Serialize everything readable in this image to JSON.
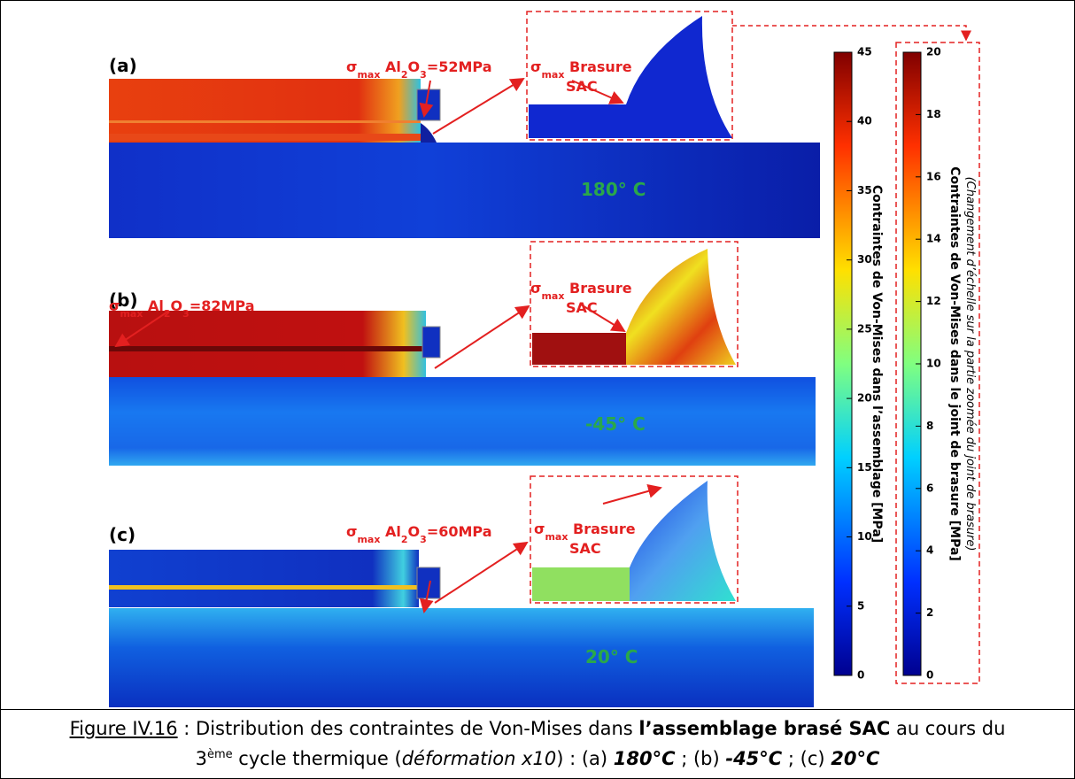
{
  "panels": [
    {
      "label": "(a)",
      "stress": {
        "symbol": "σ",
        "sub": "max",
        "material": " Al",
        "sub1": "2",
        "material2": "O",
        "sub2": "3",
        "value": "=52MPa"
      },
      "zoom": {
        "symbol": "σ",
        "sub": "max",
        "line1": " Brasure",
        "line2": "SAC"
      },
      "temperature": "180° C"
    },
    {
      "label": "(b)",
      "stress": {
        "symbol": "σ",
        "sub": "max",
        "material": " Al",
        "sub1": "2",
        "material2": "O",
        "sub2": "3",
        "value": "=82MPa"
      },
      "zoom": {
        "symbol": "σ",
        "sub": "max",
        "line1": " Brasure",
        "line2": "SAC"
      },
      "temperature": "-45° C"
    },
    {
      "label": "(c)",
      "stress": {
        "symbol": "σ",
        "sub": "max",
        "material": " Al",
        "sub1": "2",
        "material2": "O",
        "sub2": "3",
        "value": "=60MPa"
      },
      "zoom": {
        "symbol": "σ",
        "sub": "max",
        "line1": " Brasure",
        "line2": "SAC"
      },
      "temperature": "20° C"
    }
  ],
  "scale_main": {
    "title": "Contraintes de Von-Mises dans l’assemblage [MPa]",
    "ticks": [
      0,
      5,
      10,
      15,
      20,
      25,
      30,
      35,
      40,
      45
    ]
  },
  "scale_zoom": {
    "title": "Contraintes de Von-Mises dans le joint de brasure [MPa]",
    "note": "(Changement d’échelle sur la partie zoomée du joint de brasure)",
    "ticks": [
      0,
      2,
      4,
      6,
      8,
      10,
      12,
      14,
      16,
      18,
      20
    ]
  },
  "caption": {
    "label": "Figure IV.16",
    "text1": " : Distribution des contraintes de Von-Mises dans ",
    "bold1": "l’assemblage brasé SAC",
    "text2": " au cours du",
    "ordinal": "3",
    "sup": "ème",
    "text3": " cycle thermique (",
    "italic": "déformation x10",
    "text4": ") : (a) ",
    "t1": "180°C",
    "text5": " ; (b) ",
    "t2": "-45°C",
    "text6": " ; (c) ",
    "t3": "20°C"
  }
}
